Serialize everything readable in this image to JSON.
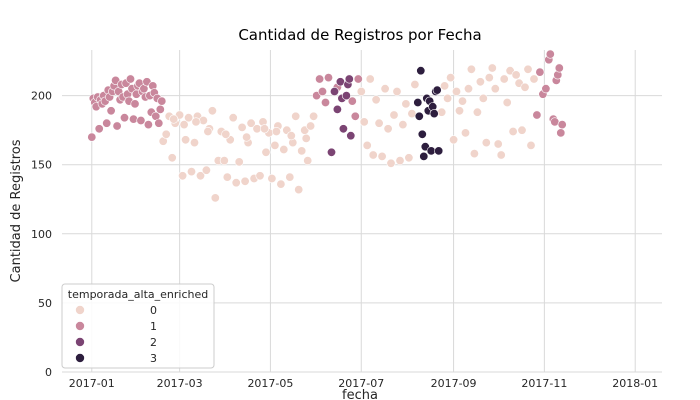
{
  "chart_data": {
    "type": "scatter",
    "title": "Cantidad de Registros por Fecha",
    "xlabel": "fecha",
    "ylabel": "Cantidad de Registros",
    "xlim": [
      "2016-12-12",
      "2018-01-19"
    ],
    "ylim": [
      0,
      233
    ],
    "x_ticks": [
      "2017-01",
      "2017-03",
      "2017-05",
      "2017-07",
      "2017-09",
      "2017-11",
      "2018-01"
    ],
    "y_ticks": [
      0,
      50,
      100,
      150,
      200
    ],
    "grid": true,
    "legend": {
      "title": "temporada_alta_enriched",
      "placement": "lower-left",
      "labels": [
        "0",
        "1",
        "2",
        "3"
      ],
      "colors": [
        "#f0d4cb",
        "#c9879c",
        "#7b4473",
        "#2d1e3e"
      ]
    },
    "points": [
      [
        "2017-01-01",
        170,
        1
      ],
      [
        "2017-01-02",
        198,
        1
      ],
      [
        "2017-01-03",
        195,
        1
      ],
      [
        "2017-01-04",
        192,
        1
      ],
      [
        "2017-01-05",
        199,
        1
      ],
      [
        "2017-01-06",
        176,
        1
      ],
      [
        "2017-01-07",
        197,
        1
      ],
      [
        "2017-01-08",
        194,
        1
      ],
      [
        "2017-01-09",
        200,
        1
      ],
      [
        "2017-01-10",
        196,
        1
      ],
      [
        "2017-01-11",
        180,
        1
      ],
      [
        "2017-01-12",
        204,
        1
      ],
      [
        "2017-01-13",
        199,
        1
      ],
      [
        "2017-01-14",
        189,
        1
      ],
      [
        "2017-01-15",
        203,
        1
      ],
      [
        "2017-01-16",
        207,
        1
      ],
      [
        "2017-01-17",
        211,
        1
      ],
      [
        "2017-01-18",
        178,
        1
      ],
      [
        "2017-01-19",
        203,
        1
      ],
      [
        "2017-01-20",
        197,
        1
      ],
      [
        "2017-01-21",
        208,
        1
      ],
      [
        "2017-01-22",
        199,
        1
      ],
      [
        "2017-01-23",
        184,
        1
      ],
      [
        "2017-01-24",
        209,
        1
      ],
      [
        "2017-01-25",
        201,
        1
      ],
      [
        "2017-01-26",
        196,
        1
      ],
      [
        "2017-01-27",
        212,
        1
      ],
      [
        "2017-01-28",
        205,
        1
      ],
      [
        "2017-01-29",
        183,
        1
      ],
      [
        "2017-01-30",
        194,
        1
      ],
      [
        "2017-01-31",
        201,
        1
      ],
      [
        "2017-02-01",
        207,
        1
      ],
      [
        "2017-02-02",
        209,
        1
      ],
      [
        "2017-02-03",
        182,
        1
      ],
      [
        "2017-02-04",
        203,
        1
      ],
      [
        "2017-02-05",
        205,
        1
      ],
      [
        "2017-02-06",
        199,
        1
      ],
      [
        "2017-02-07",
        210,
        1
      ],
      [
        "2017-02-08",
        179,
        1
      ],
      [
        "2017-02-09",
        200,
        1
      ],
      [
        "2017-02-10",
        188,
        1
      ],
      [
        "2017-02-11",
        207,
        1
      ],
      [
        "2017-02-12",
        202,
        1
      ],
      [
        "2017-02-13",
        185,
        1
      ],
      [
        "2017-02-14",
        198,
        1
      ],
      [
        "2017-02-15",
        180,
        1
      ],
      [
        "2017-02-16",
        190,
        1
      ],
      [
        "2017-02-17",
        196,
        1
      ],
      [
        "2017-02-18",
        167,
        0
      ],
      [
        "2017-02-20",
        172,
        0
      ],
      [
        "2017-02-22",
        185,
        0
      ],
      [
        "2017-02-24",
        155,
        0
      ],
      [
        "2017-02-26",
        180,
        0
      ],
      [
        "2017-03-01",
        186,
        0
      ],
      [
        "2017-03-03",
        142,
        0
      ],
      [
        "2017-03-05",
        168,
        0
      ],
      [
        "2017-03-07",
        184,
        0
      ],
      [
        "2017-03-09",
        145,
        0
      ],
      [
        "2017-03-11",
        166,
        0
      ],
      [
        "2017-03-13",
        185,
        0
      ],
      [
        "2017-03-15",
        142,
        0
      ],
      [
        "2017-03-17",
        182,
        0
      ],
      [
        "2017-03-19",
        146,
        0
      ],
      [
        "2017-03-21",
        176,
        0
      ],
      [
        "2017-03-23",
        189,
        0
      ],
      [
        "2017-03-25",
        126,
        0
      ],
      [
        "2017-03-27",
        153,
        0
      ],
      [
        "2017-03-29",
        174,
        0
      ],
      [
        "2017-03-31",
        153,
        0
      ],
      [
        "2017-04-02",
        141,
        0
      ],
      [
        "2017-04-04",
        168,
        0
      ],
      [
        "2017-04-06",
        184,
        0
      ],
      [
        "2017-04-08",
        137,
        0
      ],
      [
        "2017-04-10",
        152,
        0
      ],
      [
        "2017-04-12",
        177,
        0
      ],
      [
        "2017-04-14",
        138,
        0
      ],
      [
        "2017-04-16",
        166,
        0
      ],
      [
        "2017-04-18",
        180,
        0
      ],
      [
        "2017-04-20",
        140,
        0
      ],
      [
        "2017-04-22",
        176,
        0
      ],
      [
        "2017-04-24",
        142,
        0
      ],
      [
        "2017-04-26",
        181,
        0
      ],
      [
        "2017-04-28",
        159,
        0
      ],
      [
        "2017-04-30",
        173,
        0
      ],
      [
        "2017-05-02",
        140,
        0
      ],
      [
        "2017-05-04",
        164,
        0
      ],
      [
        "2017-05-06",
        178,
        0
      ],
      [
        "2017-05-08",
        136,
        0
      ],
      [
        "2017-05-10",
        161,
        0
      ],
      [
        "2017-05-12",
        175,
        0
      ],
      [
        "2017-05-14",
        141,
        0
      ],
      [
        "2017-05-16",
        166,
        0
      ],
      [
        "2017-05-18",
        185,
        0
      ],
      [
        "2017-05-20",
        132,
        0
      ],
      [
        "2017-05-22",
        160,
        0
      ],
      [
        "2017-05-24",
        175,
        0
      ],
      [
        "2017-05-26",
        153,
        0
      ],
      [
        "2017-05-28",
        178,
        0
      ],
      [
        "2017-05-30",
        185,
        0
      ],
      [
        "2017-02-25",
        183,
        0
      ],
      [
        "2017-03-04",
        179,
        0
      ],
      [
        "2017-03-12",
        181,
        0
      ],
      [
        "2017-03-20",
        174,
        0
      ],
      [
        "2017-04-01",
        172,
        0
      ],
      [
        "2017-04-15",
        170,
        0
      ],
      [
        "2017-04-27",
        176,
        0
      ],
      [
        "2017-05-05",
        174,
        0
      ],
      [
        "2017-05-15",
        171,
        0
      ],
      [
        "2017-05-25",
        169,
        0
      ],
      [
        "2017-06-01",
        200,
        1
      ],
      [
        "2017-06-03",
        212,
        1
      ],
      [
        "2017-06-05",
        203,
        1
      ],
      [
        "2017-06-07",
        195,
        1
      ],
      [
        "2017-06-09",
        213,
        1
      ],
      [
        "2017-06-11",
        159,
        2
      ],
      [
        "2017-06-13",
        203,
        2
      ],
      [
        "2017-06-15",
        190,
        2
      ],
      [
        "2017-06-17",
        210,
        2
      ],
      [
        "2017-06-18",
        198,
        2
      ],
      [
        "2017-06-19",
        176,
        2
      ],
      [
        "2017-06-21",
        200,
        2
      ],
      [
        "2017-06-22",
        208,
        2
      ],
      [
        "2017-06-23",
        212,
        2
      ],
      [
        "2017-06-24",
        171,
        2
      ],
      [
        "2017-06-15",
        206,
        1
      ],
      [
        "2017-06-25",
        196,
        1
      ],
      [
        "2017-06-27",
        185,
        1
      ],
      [
        "2017-06-29",
        212,
        1
      ],
      [
        "2017-07-01",
        203,
        0
      ],
      [
        "2017-07-03",
        181,
        0
      ],
      [
        "2017-07-05",
        164,
        0
      ],
      [
        "2017-07-07",
        212,
        0
      ],
      [
        "2017-07-09",
        157,
        0
      ],
      [
        "2017-07-11",
        197,
        0
      ],
      [
        "2017-07-13",
        180,
        0
      ],
      [
        "2017-07-15",
        156,
        0
      ],
      [
        "2017-07-17",
        205,
        0
      ],
      [
        "2017-07-19",
        176,
        0
      ],
      [
        "2017-07-21",
        151,
        0
      ],
      [
        "2017-07-23",
        186,
        0
      ],
      [
        "2017-07-25",
        203,
        0
      ],
      [
        "2017-07-27",
        153,
        0
      ],
      [
        "2017-07-29",
        179,
        0
      ],
      [
        "2017-07-31",
        194,
        0
      ],
      [
        "2017-08-02",
        155,
        0
      ],
      [
        "2017-08-04",
        187,
        0
      ],
      [
        "2017-08-06",
        208,
        0
      ],
      [
        "2017-08-08",
        195,
        3
      ],
      [
        "2017-08-09",
        185,
        3
      ],
      [
        "2017-08-10",
        218,
        3
      ],
      [
        "2017-08-11",
        172,
        3
      ],
      [
        "2017-08-12",
        156,
        3
      ],
      [
        "2017-08-13",
        163,
        3
      ],
      [
        "2017-08-14",
        198,
        3
      ],
      [
        "2017-08-15",
        189,
        3
      ],
      [
        "2017-08-16",
        196,
        3
      ],
      [
        "2017-08-17",
        160,
        3
      ],
      [
        "2017-08-18",
        192,
        3
      ],
      [
        "2017-08-19",
        187,
        3
      ],
      [
        "2017-08-20",
        203,
        3
      ],
      [
        "2017-08-21",
        204,
        3
      ],
      [
        "2017-08-22",
        160,
        3
      ],
      [
        "2017-08-24",
        188,
        0
      ],
      [
        "2017-08-26",
        207,
        0
      ],
      [
        "2017-08-28",
        198,
        0
      ],
      [
        "2017-08-30",
        213,
        0
      ],
      [
        "2017-09-01",
        168,
        0
      ],
      [
        "2017-09-03",
        203,
        0
      ],
      [
        "2017-09-05",
        189,
        0
      ],
      [
        "2017-09-07",
        196,
        0
      ],
      [
        "2017-09-09",
        173,
        0
      ],
      [
        "2017-09-11",
        205,
        0
      ],
      [
        "2017-09-13",
        219,
        0
      ],
      [
        "2017-09-15",
        158,
        0
      ],
      [
        "2017-09-17",
        188,
        0
      ],
      [
        "2017-09-19",
        210,
        0
      ],
      [
        "2017-09-21",
        198,
        0
      ],
      [
        "2017-09-23",
        166,
        0
      ],
      [
        "2017-09-25",
        213,
        0
      ],
      [
        "2017-09-27",
        220,
        0
      ],
      [
        "2017-09-29",
        205,
        0
      ],
      [
        "2017-10-01",
        165,
        0
      ],
      [
        "2017-10-03",
        157,
        0
      ],
      [
        "2017-10-05",
        212,
        0
      ],
      [
        "2017-10-07",
        195,
        0
      ],
      [
        "2017-10-09",
        218,
        0
      ],
      [
        "2017-10-11",
        174,
        0
      ],
      [
        "2017-10-13",
        215,
        0
      ],
      [
        "2017-10-15",
        209,
        0
      ],
      [
        "2017-10-17",
        175,
        0
      ],
      [
        "2017-10-19",
        206,
        0
      ],
      [
        "2017-10-21",
        219,
        0
      ],
      [
        "2017-10-23",
        164,
        0
      ],
      [
        "2017-10-25",
        212,
        0
      ],
      [
        "2017-10-27",
        186,
        1
      ],
      [
        "2017-10-29",
        217,
        1
      ],
      [
        "2017-10-31",
        201,
        1
      ],
      [
        "2017-11-02",
        205,
        1
      ],
      [
        "2017-11-04",
        226,
        1
      ],
      [
        "2017-11-05",
        230,
        1
      ],
      [
        "2017-11-07",
        183,
        1
      ],
      [
        "2017-11-08",
        181,
        1
      ],
      [
        "2017-11-09",
        211,
        1
      ],
      [
        "2017-11-10",
        215,
        1
      ],
      [
        "2017-11-11",
        220,
        1
      ],
      [
        "2017-11-12",
        173,
        1
      ],
      [
        "2017-11-13",
        179,
        1
      ]
    ]
  }
}
